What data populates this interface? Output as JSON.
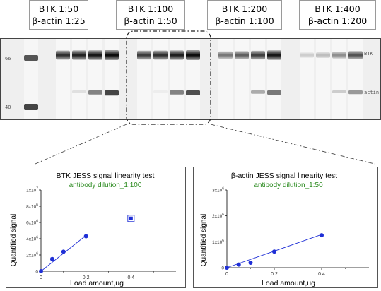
{
  "dilutions": [
    {
      "btk": "BTK 1:50",
      "actin": "β-actin 1:25"
    },
    {
      "btk": "BTK 1:100",
      "actin": "β-actin 1:50"
    },
    {
      "btk": "BTK 1:200",
      "actin": "β-actin 1:100"
    },
    {
      "btk": "BTK 1:400",
      "actin": "β-actin 1:200"
    }
  ],
  "blot": {
    "mw_markers": [
      "66",
      "40"
    ],
    "band_labels": [
      "BTK",
      "actin"
    ],
    "lane_intensity": {
      "btk": [
        0.85,
        0.9,
        0.95,
        1.0,
        0.8,
        0.85,
        0.92,
        1.0,
        0.55,
        0.65,
        0.78,
        0.95,
        0.18,
        0.25,
        0.45,
        0.7
      ],
      "actin": [
        0.0,
        0.1,
        0.55,
        0.85,
        0.0,
        0.05,
        0.55,
        0.8,
        0.0,
        0.0,
        0.35,
        0.6,
        0.0,
        0.0,
        0.2,
        0.45
      ]
    }
  },
  "chart_data": [
    {
      "type": "scatter",
      "title": "BTK JESS signal linearity test",
      "subtitle": "antibody dilution_1:100",
      "xlabel": "Load amount,ug",
      "ylabel": "Quantified signal",
      "xlim": [
        0,
        0.6
      ],
      "ylim": [
        0,
        10000000.0
      ],
      "x_ticks": [
        "0",
        "0.2",
        "0.4"
      ],
      "y_ticks": [
        "0",
        "2x10^6",
        "4x10^6",
        "6x10^6",
        "8x10^6",
        "1x10^7"
      ],
      "points": {
        "x": [
          0,
          0.05,
          0.1,
          0.2
        ],
        "y": [
          0,
          1500000.0,
          2400000.0,
          4300000.0
        ]
      },
      "outlier": {
        "x": 0.4,
        "y": 6500000.0
      },
      "fit_line": {
        "x": [
          0,
          0.2
        ],
        "y": [
          0,
          4400000.0
        ]
      },
      "colors": {
        "points": "#1f2fd6",
        "line": "#1f2fd6",
        "subtitle": "#2a8a1e"
      }
    },
    {
      "type": "scatter",
      "title": "β-actin JESS signal linearity test",
      "subtitle": "antibody dilution_1:50",
      "xlabel": "Load amount,ug",
      "ylabel": "Quantified signal",
      "xlim": [
        0,
        0.6
      ],
      "ylim": [
        0,
        3000000.0
      ],
      "x_ticks": [
        "0",
        "0.2",
        "0.4"
      ],
      "y_ticks": [
        "0",
        "1x10^6",
        "2x10^6",
        "3x10^6"
      ],
      "points": {
        "x": [
          0,
          0.05,
          0.1,
          0.2,
          0.4
        ],
        "y": [
          0,
          120000.0,
          190000.0,
          620000.0,
          1250000.0
        ]
      },
      "fit_line": {
        "x": [
          0,
          0.4
        ],
        "y": [
          0,
          1280000.0
        ]
      },
      "colors": {
        "points": "#1f2fd6",
        "line": "#1f2fd6",
        "subtitle": "#2a8a1e"
      }
    }
  ]
}
